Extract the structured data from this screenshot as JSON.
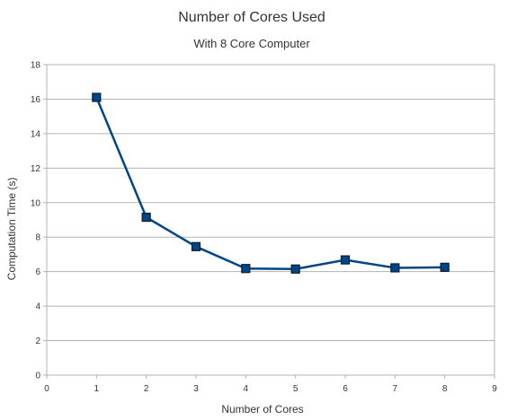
{
  "chart_data": {
    "type": "line",
    "title": "Number of Cores Used",
    "subtitle": "With 8 Core Computer",
    "xlabel": "Number of Cores",
    "ylabel": "Computation Time (s)",
    "xlim": [
      0,
      9
    ],
    "ylim": [
      0,
      18
    ],
    "x_ticks": [
      0,
      1,
      2,
      3,
      4,
      5,
      6,
      7,
      8,
      9
    ],
    "y_ticks": [
      0,
      2,
      4,
      6,
      8,
      10,
      12,
      14,
      16,
      18
    ],
    "grid": "horizontal",
    "legend": "none",
    "colors": {
      "line": "#004586",
      "marker_fill": "#004586",
      "marker_stroke": "#0b1d33",
      "grid": "#b3b3b3"
    },
    "series": [
      {
        "x": [
          1,
          2,
          3,
          4,
          5,
          6,
          7,
          8
        ],
        "values": [
          16.1,
          9.15,
          7.45,
          6.18,
          6.15,
          6.68,
          6.22,
          6.25
        ]
      }
    ]
  }
}
